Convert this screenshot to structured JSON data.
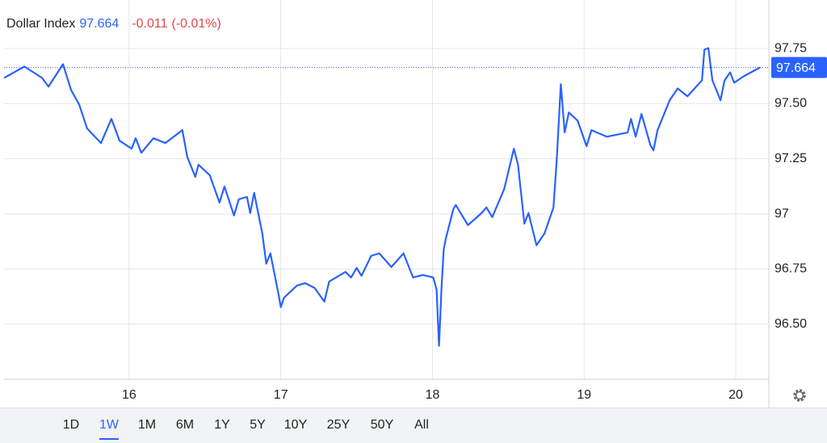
{
  "chart_data": {
    "type": "line",
    "title": "Dollar Index",
    "price": 97.664,
    "change": -0.011,
    "change_percent": "(-0.01%)",
    "x": [
      15.176,
      15.309,
      15.426,
      15.468,
      15.564,
      15.617,
      15.67,
      15.723,
      15.814,
      15.883,
      15.936,
      16.016,
      16.043,
      16.08,
      16.16,
      16.239,
      16.351,
      16.383,
      16.436,
      16.457,
      16.532,
      16.596,
      16.628,
      16.691,
      16.723,
      16.777,
      16.798,
      16.824,
      16.878,
      16.904,
      16.931,
      16.984,
      17.0,
      17.021,
      17.106,
      17.16,
      17.223,
      17.287,
      17.319,
      17.426,
      17.463,
      17.5,
      17.532,
      17.596,
      17.649,
      17.729,
      17.809,
      17.872,
      17.936,
      18.005,
      18.027,
      18.043,
      18.059,
      18.074,
      18.09,
      18.138,
      18.154,
      18.234,
      18.324,
      18.356,
      18.394,
      18.473,
      18.537,
      18.564,
      18.606,
      18.633,
      18.686,
      18.739,
      18.798,
      18.819,
      18.846,
      18.872,
      18.899,
      18.957,
      19.016,
      19.048,
      19.149,
      19.287,
      19.309,
      19.34,
      19.378,
      19.436,
      19.457,
      19.484,
      19.564,
      19.617,
      19.681,
      19.777,
      19.793,
      19.819,
      19.846,
      19.899,
      19.926,
      19.963,
      19.989,
      20.053,
      20.122,
      20.16
    ],
    "series": [
      {
        "color": "#2962ff",
        "values": [
          97.617,
          97.668,
          97.617,
          97.577,
          97.679,
          97.562,
          97.496,
          97.387,
          97.321,
          97.431,
          97.332,
          97.296,
          97.343,
          97.277,
          97.343,
          97.321,
          97.38,
          97.259,
          97.168,
          97.223,
          97.175,
          97.051,
          97.124,
          96.993,
          97.066,
          97.077,
          97.004,
          97.095,
          96.912,
          96.774,
          96.821,
          96.639,
          96.577,
          96.62,
          96.675,
          96.686,
          96.664,
          96.602,
          96.693,
          96.737,
          96.712,
          96.755,
          96.719,
          96.81,
          96.821,
          96.759,
          96.821,
          96.712,
          96.723,
          96.712,
          96.657,
          96.401,
          96.657,
          96.839,
          96.894,
          97.022,
          97.04,
          96.949,
          97.004,
          97.029,
          96.985,
          97.113,
          97.296,
          97.223,
          96.956,
          97.004,
          96.858,
          96.912,
          97.029,
          97.241,
          97.588,
          97.369,
          97.46,
          97.423,
          97.307,
          97.38,
          97.35,
          97.369,
          97.431,
          97.35,
          97.453,
          97.314,
          97.288,
          97.38,
          97.515,
          97.569,
          97.533,
          97.606,
          97.745,
          97.752,
          97.606,
          97.515,
          97.606,
          97.642,
          97.595,
          97.624,
          97.65,
          97.664
        ]
      }
    ],
    "xlim": [
      15.175,
      20.218
    ],
    "xticks": [
      16,
      17,
      18,
      19,
      20
    ],
    "ylim": [
      96.25,
      97.97
    ],
    "yticks": [
      {
        "value": 96.5,
        "label": "96.50"
      },
      96.75,
      97,
      97.25,
      {
        "value": 97.5,
        "label": "97.50"
      },
      97.75
    ],
    "grid": true
  },
  "ranges": [
    {
      "label": "1D",
      "active": false
    },
    {
      "label": "1W",
      "active": true
    },
    {
      "label": "1M",
      "active": false
    },
    {
      "label": "6M",
      "active": false
    },
    {
      "label": "1Y",
      "active": false
    },
    {
      "label": "5Y",
      "active": false
    },
    {
      "label": "10Y",
      "active": false
    },
    {
      "label": "25Y",
      "active": false
    },
    {
      "label": "50Y",
      "active": false
    },
    {
      "label": "All",
      "active": false
    }
  ]
}
